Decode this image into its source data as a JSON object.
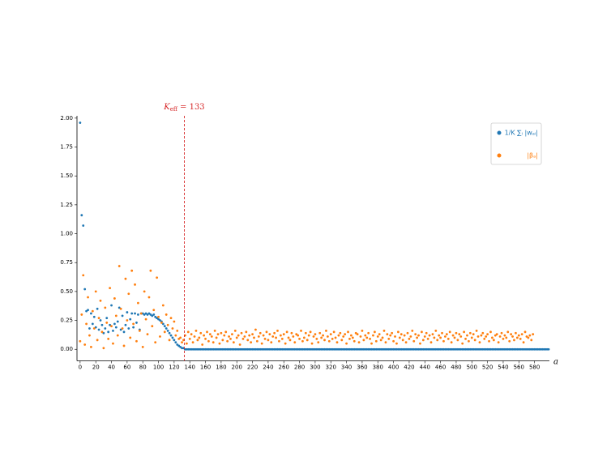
{
  "chart_data": {
    "type": "scatter",
    "xlabel": "a",
    "xlim": [
      -4,
      599
    ],
    "ylim": [
      -0.1,
      2.02
    ],
    "xticks": [
      0,
      20,
      40,
      60,
      80,
      100,
      120,
      140,
      160,
      180,
      200,
      220,
      240,
      260,
      280,
      300,
      320,
      340,
      360,
      380,
      400,
      420,
      440,
      460,
      480,
      500,
      520,
      540,
      560,
      580
    ],
    "yticks": [
      {
        "value": 0,
        "label": "0.00"
      },
      {
        "value": 0.25,
        "label": "0.25"
      },
      {
        "value": 0.5,
        "label": "0.50"
      },
      {
        "value": 0.75,
        "label": "0.75"
      },
      {
        "value": 1,
        "label": "1.00"
      },
      {
        "value": 1.25,
        "label": "1.25"
      },
      {
        "value": 1.5,
        "label": "1.50"
      },
      {
        "value": 1.75,
        "label": "1.75"
      },
      {
        "value": 2,
        "label": "2.00"
      }
    ],
    "legend": "upper right",
    "vline": {
      "x": 133,
      "color": "#d62728",
      "label_main": "K",
      "label_sub": "eff",
      "label_rest": " = 133"
    },
    "x": [
      0,
      2,
      4,
      6,
      8,
      10,
      12,
      14,
      16,
      18,
      20,
      22,
      24,
      26,
      28,
      30,
      32,
      34,
      36,
      38,
      40,
      42,
      44,
      46,
      48,
      50,
      52,
      54,
      56,
      58,
      60,
      62,
      64,
      66,
      68,
      70,
      72,
      74,
      76,
      78,
      80,
      82,
      84,
      86,
      88,
      90,
      92,
      94,
      96,
      98,
      100,
      102,
      104,
      106,
      108,
      110,
      112,
      114,
      116,
      118,
      120,
      122,
      124,
      126,
      128,
      130,
      132,
      134,
      136,
      138,
      140,
      142,
      144,
      146,
      148,
      150,
      152,
      154,
      156,
      158,
      160,
      162,
      164,
      166,
      168,
      170,
      172,
      174,
      176,
      178,
      180,
      182,
      184,
      186,
      188,
      190,
      192,
      194,
      196,
      198,
      200,
      202,
      204,
      206,
      208,
      210,
      212,
      214,
      216,
      218,
      220,
      222,
      224,
      226,
      228,
      230,
      232,
      234,
      236,
      238,
      240,
      242,
      244,
      246,
      248,
      250,
      252,
      254,
      256,
      258,
      260,
      262,
      264,
      266,
      268,
      270,
      272,
      274,
      276,
      278,
      280,
      282,
      284,
      286,
      288,
      290,
      292,
      294,
      296,
      298,
      300,
      302,
      304,
      306,
      308,
      310,
      312,
      314,
      316,
      318,
      320,
      322,
      324,
      326,
      328,
      330,
      332,
      334,
      336,
      338,
      340,
      342,
      344,
      346,
      348,
      350,
      352,
      354,
      356,
      358,
      360,
      362,
      364,
      366,
      368,
      370,
      372,
      374,
      376,
      378,
      380,
      382,
      384,
      386,
      388,
      390,
      392,
      394,
      396,
      398,
      400,
      402,
      404,
      406,
      408,
      410,
      412,
      414,
      416,
      418,
      420,
      422,
      424,
      426,
      428,
      430,
      432,
      434,
      436,
      438,
      440,
      442,
      444,
      446,
      448,
      450,
      452,
      454,
      456,
      458,
      460,
      462,
      464,
      466,
      468,
      470,
      472,
      474,
      476,
      478,
      480,
      482,
      484,
      486,
      488,
      490,
      492,
      494,
      496,
      498,
      500,
      502,
      504,
      506,
      508,
      510,
      512,
      514,
      516,
      518,
      520,
      522,
      524,
      526,
      528,
      530,
      532,
      534,
      536,
      538,
      540,
      542,
      544,
      546,
      548,
      550,
      552,
      554,
      556,
      558,
      560,
      562,
      564,
      566,
      568,
      570,
      572,
      574,
      576,
      578,
      580,
      582,
      584,
      586,
      588,
      590,
      592,
      594,
      596,
      598
    ],
    "series": [
      {
        "name": "1/K ∑ᵢ |wₐᵢ|",
        "color": "#1f77b4",
        "values": [
          1.96,
          1.16,
          1.07,
          0.52,
          0.33,
          0.34,
          0.18,
          0.31,
          0.22,
          0.28,
          0.19,
          0.35,
          0.17,
          0.25,
          0.21,
          0.14,
          0.18,
          0.27,
          0.15,
          0.21,
          0.38,
          0.16,
          0.22,
          0.19,
          0.24,
          0.36,
          0.17,
          0.29,
          0.15,
          0.21,
          0.32,
          0.18,
          0.26,
          0.31,
          0.19,
          0.31,
          0.23,
          0.3,
          0.17,
          0.31,
          0.31,
          0.3,
          0.31,
          0.3,
          0.31,
          0.3,
          0.29,
          0.3,
          0.28,
          0.27,
          0.26,
          0.25,
          0.24,
          0.22,
          0.2,
          0.18,
          0.16,
          0.14,
          0.12,
          0.1,
          0.08,
          0.06,
          0.04,
          0.03,
          0.02,
          0.01,
          0.01,
          0,
          0,
          0,
          0,
          0,
          0,
          0,
          0,
          0,
          0,
          0,
          0,
          0,
          0,
          0,
          0,
          0,
          0,
          0,
          0,
          0,
          0,
          0,
          0,
          0,
          0,
          0,
          0,
          0,
          0,
          0,
          0,
          0,
          0,
          0,
          0,
          0,
          0,
          0,
          0,
          0,
          0,
          0,
          0,
          0,
          0,
          0,
          0,
          0,
          0,
          0,
          0,
          0,
          0,
          0,
          0,
          0,
          0,
          0,
          0,
          0,
          0,
          0,
          0,
          0,
          0,
          0,
          0,
          0,
          0,
          0,
          0,
          0,
          0,
          0,
          0,
          0,
          0,
          0,
          0,
          0,
          0,
          0,
          0,
          0,
          0,
          0,
          0,
          0,
          0,
          0,
          0,
          0,
          0,
          0,
          0,
          0,
          0,
          0,
          0,
          0,
          0,
          0,
          0,
          0,
          0,
          0,
          0,
          0,
          0,
          0,
          0,
          0,
          0,
          0,
          0,
          0,
          0,
          0,
          0,
          0,
          0,
          0,
          0,
          0,
          0,
          0,
          0,
          0,
          0,
          0,
          0,
          0,
          0,
          0,
          0,
          0,
          0,
          0,
          0,
          0,
          0,
          0,
          0,
          0,
          0,
          0,
          0,
          0,
          0,
          0,
          0,
          0,
          0,
          0,
          0,
          0,
          0,
          0,
          0,
          0,
          0,
          0,
          0,
          0,
          0,
          0,
          0,
          0,
          0,
          0,
          0,
          0,
          0,
          0,
          0,
          0,
          0,
          0,
          0,
          0,
          0,
          0,
          0,
          0,
          0,
          0,
          0,
          0,
          0,
          0,
          0,
          0,
          0,
          0,
          0,
          0,
          0,
          0,
          0,
          0,
          0,
          0,
          0,
          0,
          0,
          0,
          0,
          0,
          0,
          0,
          0,
          0,
          0,
          0,
          0,
          0,
          0,
          0,
          0,
          0,
          0,
          0,
          0,
          0,
          0,
          0,
          0,
          0,
          0,
          0,
          0,
          0
        ]
      },
      {
        "name": "|βₐ|",
        "color": "#ff7f0e",
        "values": [
          0.07,
          0.3,
          0.64,
          0.04,
          0.22,
          0.45,
          0.12,
          0.02,
          0.33,
          0.18,
          0.5,
          0.08,
          0.27,
          0.42,
          0.15,
          0.01,
          0.36,
          0.23,
          0.09,
          0.53,
          0.2,
          0.05,
          0.44,
          0.29,
          0.12,
          0.72,
          0.35,
          0.18,
          0.03,
          0.61,
          0.25,
          0.48,
          0.1,
          0.68,
          0.22,
          0.56,
          0.07,
          0.4,
          0.16,
          0.31,
          0.02,
          0.5,
          0.26,
          0.13,
          0.45,
          0.68,
          0.2,
          0.34,
          0.06,
          0.62,
          0.28,
          0.11,
          0.23,
          0.38,
          0.15,
          0.3,
          0.21,
          0.08,
          0.27,
          0.18,
          0.24,
          0.12,
          0.16,
          0.09,
          0.1,
          0.06,
          0.08,
          0.12,
          0.05,
          0.15,
          0.09,
          0.13,
          0.06,
          0.11,
          0.16,
          0.08,
          0.1,
          0.14,
          0.04,
          0.12,
          0.09,
          0.15,
          0.07,
          0.13,
          0.11,
          0.06,
          0.16,
          0.1,
          0.13,
          0.05,
          0.14,
          0.08,
          0.12,
          0.15,
          0.07,
          0.11,
          0.09,
          0.13,
          0.06,
          0.16,
          0.1,
          0.12,
          0.04,
          0.14,
          0.09,
          0.11,
          0.15,
          0.08,
          0.12,
          0.06,
          0.13,
          0.1,
          0.17,
          0.07,
          0.11,
          0.14,
          0.05,
          0.12,
          0.09,
          0.15,
          0.08,
          0.13,
          0.06,
          0.11,
          0.14,
          0.1,
          0.16,
          0.07,
          0.12,
          0.09,
          0.13,
          0.05,
          0.15,
          0.1,
          0.08,
          0.14,
          0.11,
          0.06,
          0.13,
          0.12,
          0.09,
          0.16,
          0.07,
          0.1,
          0.14,
          0.08,
          0.12,
          0.15,
          0.05,
          0.11,
          0.13,
          0.09,
          0.06,
          0.14,
          0.1,
          0.12,
          0.08,
          0.16,
          0.11,
          0.07,
          0.13,
          0.09,
          0.15,
          0.1,
          0.06,
          0.12,
          0.14,
          0.08,
          0.11,
          0.13,
          0.05,
          0.15,
          0.09,
          0.12,
          0.1,
          0.07,
          0.14,
          0.13,
          0.06,
          0.11,
          0.16,
          0.08,
          0.12,
          0.1,
          0.14,
          0.09,
          0.05,
          0.12,
          0.15,
          0.07,
          0.11,
          0.13,
          0.08,
          0.1,
          0.16,
          0.06,
          0.13,
          0.09,
          0.12,
          0.14,
          0.07,
          0.11,
          0.05,
          0.15,
          0.1,
          0.13,
          0.08,
          0.12,
          0.06,
          0.14,
          0.09,
          0.11,
          0.16,
          0.07,
          0.13,
          0.1,
          0.12,
          0.05,
          0.15,
          0.08,
          0.11,
          0.14,
          0.09,
          0.12,
          0.06,
          0.13,
          0.1,
          0.16,
          0.08,
          0.12,
          0.1,
          0.14,
          0.07,
          0.11,
          0.13,
          0.09,
          0.15,
          0.06,
          0.12,
          0.1,
          0.14,
          0.08,
          0.13,
          0.11,
          0.05,
          0.15,
          0.09,
          0.12,
          0.07,
          0.14,
          0.1,
          0.13,
          0.08,
          0.16,
          0.11,
          0.06,
          0.12,
          0.14,
          0.09,
          0.11,
          0.13,
          0.07,
          0.15,
          0.1,
          0.08,
          0.12,
          0.13,
          0.06,
          0.11,
          0.14,
          0.09,
          0.12,
          0.1,
          0.15,
          0.07,
          0.13,
          0.11,
          0.08,
          0.14,
          0.1,
          0.12,
          0.09,
          0.13,
          0.06,
          0.15,
          0.11,
          0.1,
          0.12,
          0.08,
          0.13
        ]
      }
    ]
  }
}
